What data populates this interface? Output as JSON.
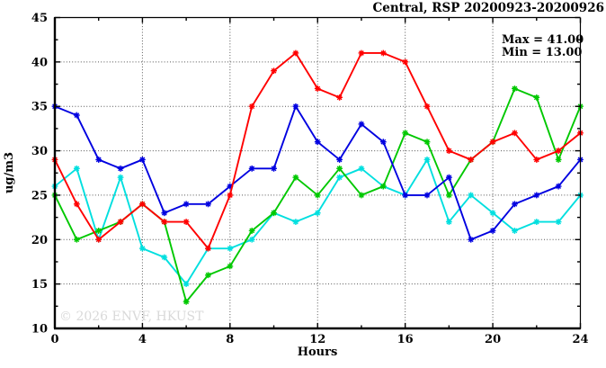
{
  "title": "Central, RSP 20200923-20200926",
  "stats": {
    "max_label": "Max = 41.00",
    "min_label": "Min = 13.00"
  },
  "watermark": "© 2026 ENVF, HKUST",
  "chart_data": {
    "type": "line",
    "title": "Central, RSP 20200923-20200926",
    "xlabel": "Hours",
    "ylabel": "ug/m3",
    "xlim": [
      0,
      24
    ],
    "ylim": [
      10,
      45
    ],
    "x_major_ticks": [
      0,
      4,
      8,
      12,
      16,
      20,
      24
    ],
    "x_minor_ticks": [
      2,
      6,
      10,
      14,
      18,
      22
    ],
    "y_major_ticks": [
      10,
      15,
      20,
      25,
      30,
      35,
      40,
      45
    ],
    "y_minor_ticks": [
      12.5,
      17.5,
      22.5,
      27.5,
      32.5,
      37.5,
      42.5
    ],
    "grid": "dotted lines at major ticks (x: 4,8,12,16,20; y: 15,20,25,30,35,40)",
    "legend": "none",
    "annotations": [
      "Max = 41.00",
      "Min = 13.00"
    ],
    "x": [
      0,
      1,
      2,
      3,
      4,
      5,
      6,
      7,
      8,
      9,
      10,
      11,
      12,
      13,
      14,
      15,
      16,
      17,
      18,
      19,
      20,
      21,
      22,
      23,
      24
    ],
    "series": [
      {
        "name": "cyan",
        "color": "#00dfdf",
        "values": [
          26,
          28,
          20,
          27,
          19,
          18,
          15,
          19,
          19,
          20,
          23,
          22,
          23,
          27,
          28,
          26,
          25,
          29,
          22,
          25,
          23,
          21,
          22,
          22,
          25
        ]
      },
      {
        "name": "green",
        "color": "#00c800",
        "values": [
          25,
          20,
          21,
          22,
          24,
          22,
          13,
          16,
          17,
          21,
          23,
          27,
          25,
          28,
          25,
          26,
          32,
          31,
          25,
          29,
          31,
          37,
          36,
          29,
          35
        ]
      },
      {
        "name": "blue",
        "color": "#0000e0",
        "values": [
          35,
          34,
          29,
          28,
          29,
          23,
          24,
          24,
          26,
          28,
          28,
          35,
          31,
          29,
          33,
          31,
          25,
          25,
          27,
          20,
          21,
          24,
          25,
          26,
          29
        ]
      },
      {
        "name": "red",
        "color": "#ff0000",
        "values": [
          29,
          24,
          20,
          22,
          24,
          22,
          22,
          19,
          25,
          35,
          39,
          41,
          37,
          36,
          41,
          41,
          40,
          35,
          30,
          29,
          31,
          32,
          29,
          30,
          32
        ]
      }
    ]
  }
}
